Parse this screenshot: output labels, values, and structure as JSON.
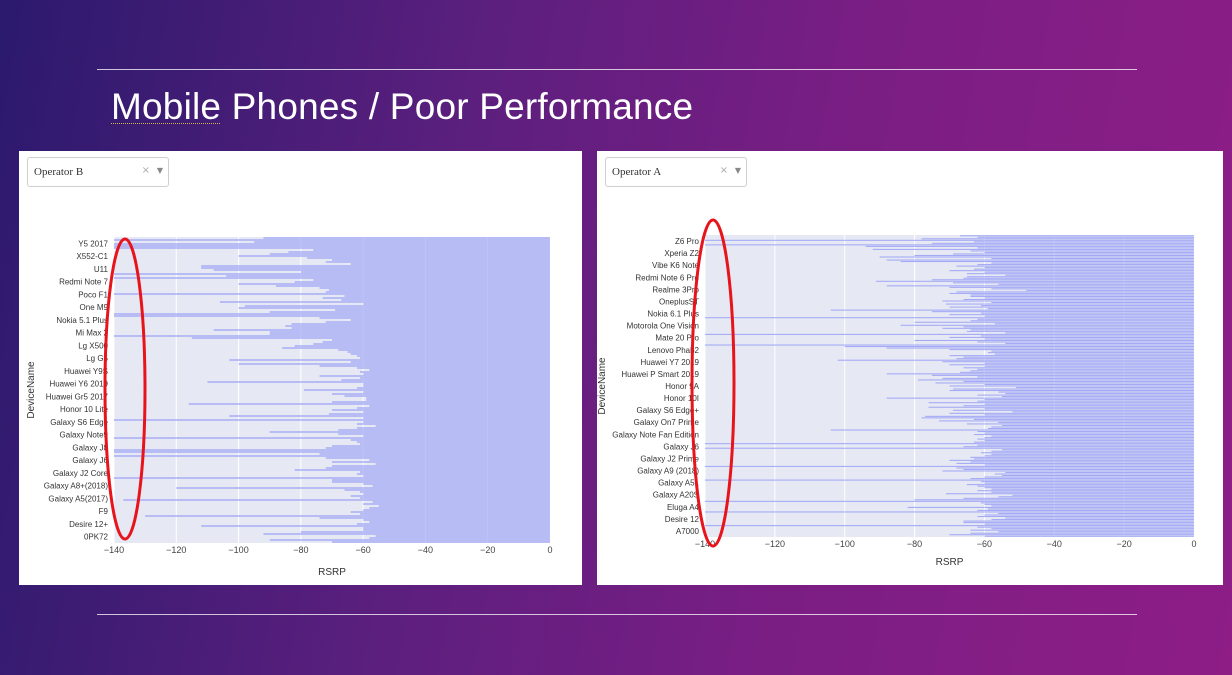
{
  "slide": {
    "title_first": "Mobile",
    "title_rest": " Phones / Poor Performance"
  },
  "colors": {
    "bar": "#a3a9f5",
    "plot_bg": "#e6e9f4",
    "highlight": "#e8141b"
  },
  "chart_data": [
    {
      "type": "bar",
      "orientation": "horizontal",
      "filter": {
        "value": "Operator B",
        "clear_icon": "x-icon",
        "arrow_icon": "chevron-down-icon"
      },
      "xlabel": "RSRP",
      "ylabel": "DeviceName",
      "xlim": [
        -140,
        0
      ],
      "x_ticks": [
        "−140",
        "−120",
        "−100",
        "−80",
        "−60",
        "−40",
        "−20",
        "0"
      ],
      "grid": true,
      "labeled_devices": [
        "Y5 2017",
        "X552-C1",
        "U11",
        "Redmi Note 7",
        "Poco F1",
        "One M9",
        "Nokia 5.1 Plus",
        "Mi Max 2",
        "Lg X500",
        "Lg G5",
        "Huawei Y9S",
        "Huawei Y6 2019",
        "Huawei Gr5 2017",
        "Honor 10 Lite",
        "Galaxy S6 Edge",
        "Galaxy Note9",
        "Galaxy J8",
        "Galaxy J6",
        "Galaxy J2 Core",
        "Galaxy A8+(2018)",
        "Galaxy A5(2017)",
        "F9",
        "Desire 12+",
        "0PK72"
      ],
      "bar_min_values": [
        -92,
        -140,
        -95,
        -140,
        -140,
        -140,
        -76,
        -84,
        -90,
        -100,
        -78,
        -70,
        -72,
        -64,
        -112,
        -112,
        -108,
        -80,
        -140,
        -104,
        -140,
        -76,
        -82,
        -100,
        -88,
        -74,
        -71,
        -72,
        -140,
        -66,
        -73,
        -67,
        -106,
        -60,
        -98,
        -100,
        -69,
        -90,
        -140,
        -140,
        -74,
        -64,
        -72,
        -83,
        -85,
        -83,
        -108,
        -90,
        -90,
        -140,
        -115,
        -70,
        -73,
        -76,
        -82,
        -86,
        -68,
        -65,
        -64,
        -62,
        -61,
        -103,
        -64,
        -100,
        -74,
        -62,
        -58,
        -61,
        -60,
        -74,
        -61,
        -67,
        -110,
        -60,
        -60,
        -62,
        -79,
        -60,
        -70,
        -66,
        -59,
        -59,
        -70,
        -116,
        -58,
        -62,
        -70,
        -60,
        -71,
        -103,
        -60,
        -140,
        -60,
        -62,
        -56,
        -62,
        -68,
        -90,
        -68,
        -60,
        -140,
        -64,
        -62,
        -61,
        -70,
        -72,
        -140,
        -140,
        -74,
        -140,
        -72,
        -58,
        -70,
        -56,
        -70,
        -72,
        -82,
        -61,
        -62,
        -60,
        -140,
        -70,
        -70,
        -60,
        -57,
        -120,
        -66,
        -61,
        -60,
        -64,
        -61,
        -137,
        -57,
        -60,
        -55,
        -58,
        -60,
        -64,
        -61,
        -130,
        -74,
        -60,
        -58,
        -62,
        -112,
        -60,
        -60,
        -80,
        -92,
        -56,
        -58,
        -90,
        -70
      ],
      "highlight_ellipse": true
    },
    {
      "type": "bar",
      "orientation": "horizontal",
      "filter": {
        "value": "Operator A",
        "clear_icon": "x-icon",
        "arrow_icon": "chevron-down-icon"
      },
      "xlabel": "RSRP",
      "ylabel": "DeviceName",
      "xlim": [
        -140,
        0
      ],
      "x_ticks": [
        "−140",
        "−120",
        "−100",
        "−80",
        "−60",
        "−40",
        "−20",
        "0"
      ],
      "grid": true,
      "labeled_devices": [
        "Z6 Pro",
        "Xperia Z2",
        "Vibe K6 Note",
        "Redmi Note 6 Pro",
        "Realme 3Pro",
        "OneplusST",
        "Nokia 6.1 Plus",
        "Motorola One Vision",
        "Mate 20 Pro",
        "Lenovo Phab2",
        "Huawei Y7 2019",
        "Huawei P Smart 2019",
        "Honor 9A",
        "Honor 10I",
        "Galaxy S6 Edge+",
        "Galaxy On7 Prime",
        "Galaxy Note Fan Edition",
        "Galaxy J6",
        "Galaxy J2 Prime",
        "Galaxy A9 (2018)",
        "Galaxy A51",
        "Galaxy A20S",
        "Eluga A4",
        "Desire 12",
        "A7000"
      ],
      "bar_min_values": [
        -67,
        -62,
        -78,
        -140,
        -63,
        -75,
        -140,
        -94,
        -62,
        -92,
        -64,
        -60,
        -69,
        -80,
        -90,
        -58,
        -88,
        -84,
        -58,
        -62,
        -68,
        -60,
        -63,
        -70,
        -60,
        -65,
        -54,
        -65,
        -66,
        -75,
        -91,
        -69,
        -56,
        -88,
        -70,
        -58,
        -48,
        -68,
        -70,
        -64,
        -64,
        -60,
        -66,
        -72,
        -58,
        -71,
        -61,
        -70,
        -59,
        -104,
        -75,
        -61,
        -70,
        -60,
        -140,
        -62,
        -64,
        -80,
        -57,
        -84,
        -66,
        -72,
        -64,
        -65,
        -54,
        -140,
        -61,
        -70,
        -60,
        -80,
        -62,
        -54,
        -140,
        -100,
        -88,
        -70,
        -58,
        -59,
        -57,
        -70,
        -66,
        -68,
        -102,
        -72,
        -60,
        -70,
        -60,
        -66,
        -62,
        -64,
        -67,
        -88,
        -75,
        -62,
        -72,
        -79,
        -66,
        -74,
        -60,
        -70,
        -51,
        -69,
        -70,
        -56,
        -54,
        -62,
        -55,
        -88,
        -60,
        -62,
        -76,
        -60,
        -66,
        -76,
        -60,
        -69,
        -52,
        -70,
        -60,
        -77,
        -78,
        -63,
        -73,
        -56,
        -65,
        -55,
        -58,
        -59,
        -104,
        -62,
        -60,
        -63,
        -58,
        -60,
        -62,
        -60,
        -63,
        -140,
        -62,
        -66,
        -140,
        -55,
        -58,
        -61,
        -58,
        -60,
        -64,
        -63,
        -70,
        -64,
        -68,
        -60,
        -140,
        -68,
        -66,
        -72,
        -54,
        -57,
        -55,
        -60,
        -64,
        -140,
        -61,
        -60,
        -65,
        -62,
        -60,
        -58,
        -62,
        -58,
        -71,
        -52,
        -56,
        -66,
        -80,
        -140,
        -61,
        -60,
        -58,
        -82,
        -59,
        -62,
        -140,
        -56,
        -60,
        -62,
        -54,
        -58,
        -66,
        -66,
        -60,
        -140,
        -62,
        -58,
        -64,
        -56,
        -64,
        -70,
        -60
      ],
      "highlight_ellipse": true
    }
  ]
}
